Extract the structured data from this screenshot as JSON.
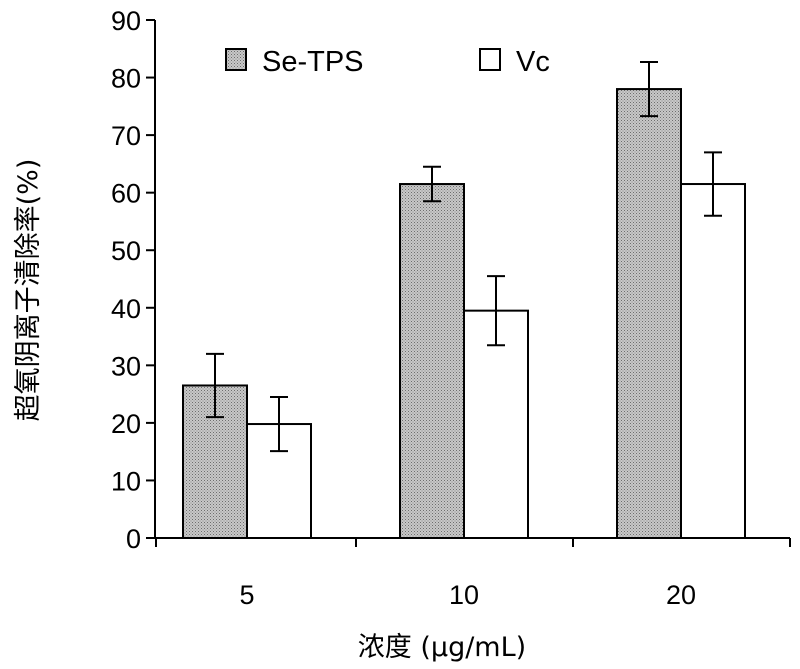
{
  "chart_data": {
    "type": "bar",
    "categories": [
      "5",
      "10",
      "20"
    ],
    "series": [
      {
        "name": "Se-TPS",
        "values": [
          26.5,
          61.5,
          78
        ],
        "errors": [
          5.5,
          3,
          4.7
        ],
        "fill": "#b4b4b4",
        "pattern": "dotted"
      },
      {
        "name": "Vc",
        "values": [
          19.8,
          39.5,
          61.5
        ],
        "errors": [
          4.7,
          6,
          5.5
        ],
        "fill": "#ffffff",
        "pattern": "none"
      }
    ],
    "title": "",
    "xlabel": "浓度 (μg/mL)",
    "ylabel": "超氧阴离子清除率(%)",
    "ylim": [
      0,
      90
    ],
    "yticks": [
      0,
      10,
      20,
      30,
      40,
      50,
      60,
      70,
      80,
      90
    ],
    "grid": false,
    "legend_position": "top"
  }
}
